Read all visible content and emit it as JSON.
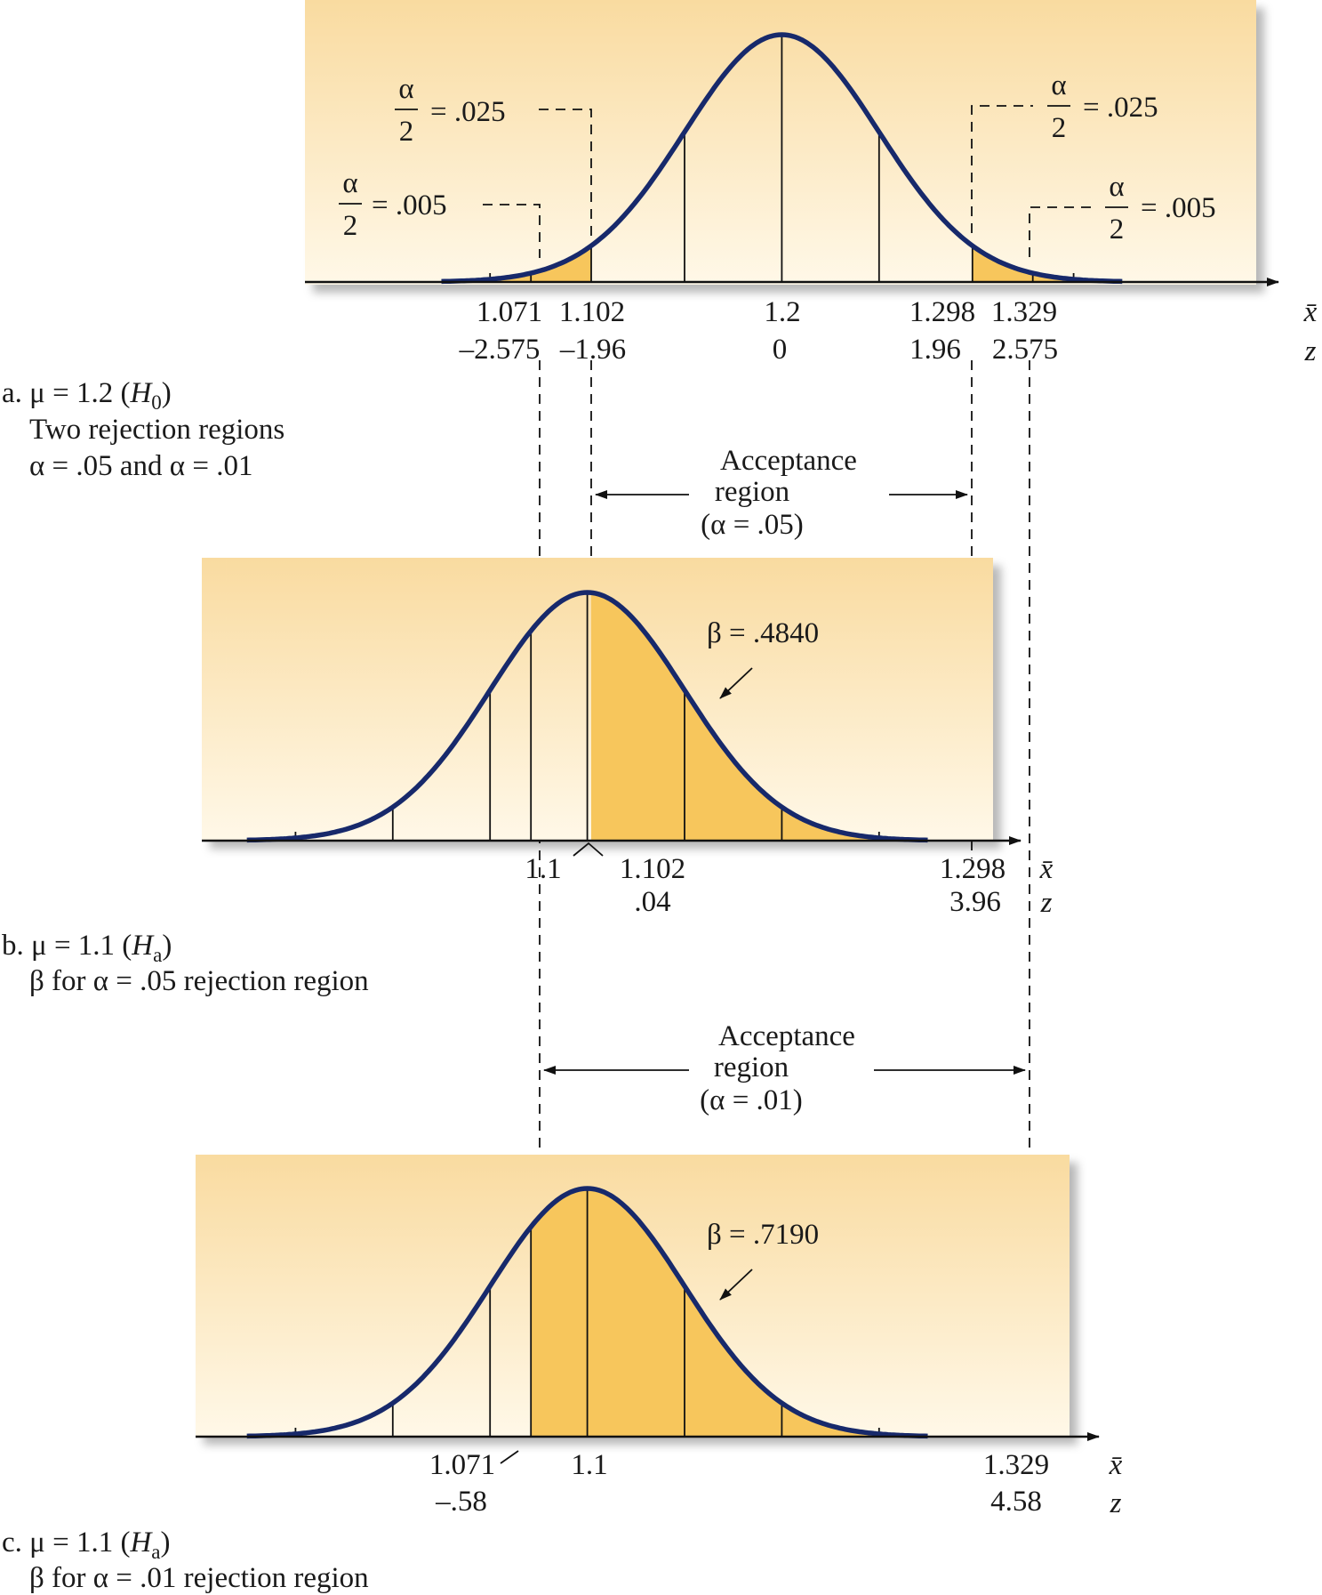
{
  "panels": [
    {
      "id": "a",
      "caption": {
        "prefix": "a. μ = 1.2 (",
        "var": "H",
        "sub": "0",
        "suffix": ")",
        "lines": [
          "Two rejection regions",
          "α = .05 and α = .01"
        ]
      },
      "mu": 1.2,
      "x_labels": [
        "1.071",
        "1.102",
        "1.2",
        "1.298",
        "1.329"
      ],
      "z_labels": [
        "–2.575",
        "–1.96",
        "0",
        "1.96",
        "2.575"
      ],
      "axis_x_name": "x̄",
      "axis_z_name": "z",
      "tail_annotations": [
        {
          "num": "α",
          "den": "2",
          "value": "= .025"
        },
        {
          "num": "α",
          "den": "2",
          "value": "= .005"
        },
        {
          "num": "α",
          "den": "2",
          "value": "= .025"
        },
        {
          "num": "α",
          "den": "2",
          "value": "= .005"
        }
      ]
    },
    {
      "id": "b",
      "caption": {
        "prefix": "b. μ = 1.1 (",
        "var": "H",
        "sub": "a",
        "suffix": ")",
        "lines": [
          "β for α = .05 rejection region"
        ]
      },
      "mu": 1.1,
      "shade_from": 1.102,
      "shade_to": 1.298,
      "x_labels": [
        "1.1",
        "1.102",
        "1.298"
      ],
      "z_labels": [
        ".04",
        "3.96"
      ],
      "axis_x_name": "x̄",
      "axis_z_name": "z",
      "beta_label": "β = .4840",
      "acceptance": {
        "lines": [
          "Acceptance",
          "region",
          "(α = .05)"
        ]
      }
    },
    {
      "id": "c",
      "caption": {
        "prefix": "c. μ = 1.1 (",
        "var": "H",
        "sub": "a",
        "suffix": ")",
        "lines": [
          "β for α = .01 rejection region"
        ]
      },
      "mu": 1.1,
      "shade_from": 1.071,
      "shade_to": 1.329,
      "x_labels": [
        "1.071",
        "1.1",
        "1.329"
      ],
      "z_labels": [
        "–.58",
        "4.58"
      ],
      "axis_x_name": "x̄",
      "axis_z_name": "z",
      "beta_label": "β = .7190",
      "acceptance": {
        "lines": [
          "Acceptance",
          "region",
          "(α = .01)"
        ]
      }
    }
  ],
  "colors": {
    "curve": "#17296b",
    "shade": "#f7c65c",
    "panel_top": "#f9dba0",
    "panel_bottom": "#fff8e8"
  }
}
